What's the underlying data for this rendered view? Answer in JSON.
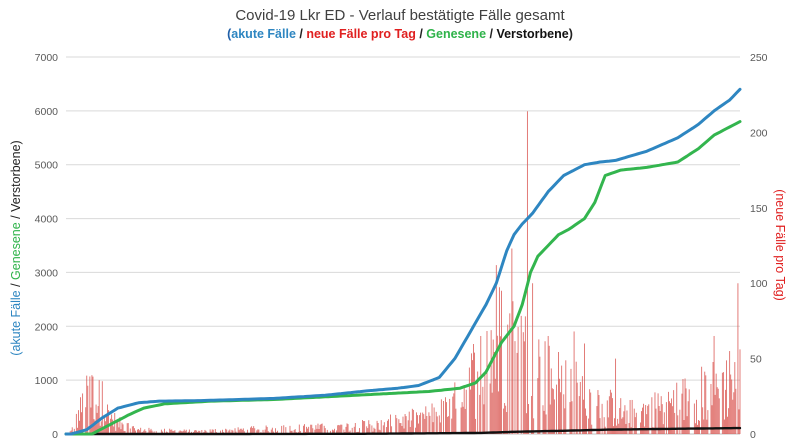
{
  "chart_data": {
    "type": "line",
    "title": "Covid-19 Lkr ED - Verlauf bestätigte Fälle gesamt",
    "subtitle": {
      "parts": [
        {
          "text": "(",
          "color": "#1f5fa8"
        },
        {
          "text": "akute Fälle",
          "color": "#2e86c1"
        },
        {
          "text": " / ",
          "color": "#222222"
        },
        {
          "text": "neue Fälle pro Tag",
          "color": "#e02020"
        },
        {
          "text": " / ",
          "color": "#222222"
        },
        {
          "text": "Genesene",
          "color": "#2fb34a"
        },
        {
          "text": " / ",
          "color": "#222222"
        },
        {
          "text": "Verstorbene",
          "color": "#111111"
        },
        {
          "text": ")",
          "color": "#222222"
        }
      ]
    },
    "y_left": {
      "label_parts": [
        {
          "text": "(",
          "color": "#2e86c1"
        },
        {
          "text": "akute Fälle",
          "color": "#2e86c1"
        },
        {
          "text": " / ",
          "color": "#222222"
        },
        {
          "text": "Genesene",
          "color": "#2fb34a"
        },
        {
          "text": " / ",
          "color": "#222222"
        },
        {
          "text": "Verstorbene",
          "color": "#222222"
        },
        {
          "text": ")",
          "color": "#222222"
        }
      ],
      "range": [
        0,
        7000
      ],
      "ticks": [
        0,
        1000,
        2000,
        3000,
        4000,
        5000,
        6000,
        7000
      ]
    },
    "y_right": {
      "label": "(neue Fälle pro Tag)",
      "label_color": "#e02020",
      "range": [
        0,
        250
      ],
      "ticks": [
        0,
        50,
        100,
        150,
        200,
        250
      ]
    },
    "grid": true,
    "x_days": 500,
    "colors": {
      "akute": "#2e86c1",
      "neue": "#d9534f",
      "genesene": "#33b54e",
      "verstorbene": "#111111"
    },
    "series": [
      {
        "key": "akute",
        "axis": "left",
        "points": [
          [
            0,
            0
          ],
          [
            5,
            0
          ],
          [
            20,
            80
          ],
          [
            35,
            300
          ],
          [
            50,
            480
          ],
          [
            70,
            580
          ],
          [
            90,
            610
          ],
          [
            130,
            620
          ],
          [
            200,
            660
          ],
          [
            250,
            720
          ],
          [
            290,
            800
          ],
          [
            320,
            850
          ],
          [
            340,
            900
          ],
          [
            360,
            1050
          ],
          [
            375,
            1400
          ],
          [
            390,
            1900
          ],
          [
            405,
            2400
          ],
          [
            415,
            2800
          ],
          [
            425,
            3400
          ],
          [
            432,
            3700
          ],
          [
            440,
            3900
          ],
          [
            450,
            4100
          ],
          [
            465,
            4500
          ],
          [
            480,
            4800
          ],
          [
            500,
            5000
          ],
          [
            515,
            5050
          ],
          [
            530,
            5080
          ],
          [
            560,
            5250
          ],
          [
            590,
            5500
          ],
          [
            610,
            5750
          ],
          [
            625,
            6000
          ],
          [
            640,
            6200
          ],
          [
            650,
            6400
          ]
        ]
      },
      {
        "key": "genesene",
        "axis": "left",
        "points": [
          [
            0,
            0
          ],
          [
            25,
            0
          ],
          [
            45,
            200
          ],
          [
            60,
            350
          ],
          [
            75,
            480
          ],
          [
            95,
            560
          ],
          [
            140,
            610
          ],
          [
            200,
            640
          ],
          [
            250,
            690
          ],
          [
            300,
            740
          ],
          [
            350,
            790
          ],
          [
            380,
            850
          ],
          [
            395,
            950
          ],
          [
            405,
            1150
          ],
          [
            420,
            1700
          ],
          [
            432,
            2000
          ],
          [
            440,
            2400
          ],
          [
            448,
            3000
          ],
          [
            455,
            3300
          ],
          [
            465,
            3500
          ],
          [
            475,
            3700
          ],
          [
            485,
            3800
          ],
          [
            500,
            4000
          ],
          [
            510,
            4300
          ],
          [
            520,
            4800
          ],
          [
            535,
            4900
          ],
          [
            560,
            4950
          ],
          [
            590,
            5050
          ],
          [
            610,
            5300
          ],
          [
            625,
            5550
          ],
          [
            640,
            5700
          ],
          [
            650,
            5800
          ]
        ]
      },
      {
        "key": "verstorbene",
        "axis": "left",
        "points": [
          [
            0,
            0
          ],
          [
            150,
            0
          ],
          [
            300,
            5
          ],
          [
            400,
            20
          ],
          [
            430,
            40
          ],
          [
            480,
            60
          ],
          [
            520,
            80
          ],
          [
            560,
            90
          ],
          [
            600,
            100
          ],
          [
            650,
            110
          ]
        ]
      }
    ],
    "bars": {
      "key": "neue",
      "axis": "right",
      "x_extent": [
        0,
        650
      ],
      "spikes": [
        [
          25,
          39
        ],
        [
          35,
          35
        ],
        [
          400,
          65
        ],
        [
          415,
          112
        ],
        [
          420,
          95
        ],
        [
          430,
          123
        ],
        [
          445,
          214
        ],
        [
          450,
          100
        ],
        [
          465,
          65
        ],
        [
          490,
          68
        ],
        [
          500,
          60
        ],
        [
          530,
          50
        ],
        [
          625,
          65
        ],
        [
          640,
          55
        ],
        [
          648,
          100
        ]
      ]
    }
  }
}
